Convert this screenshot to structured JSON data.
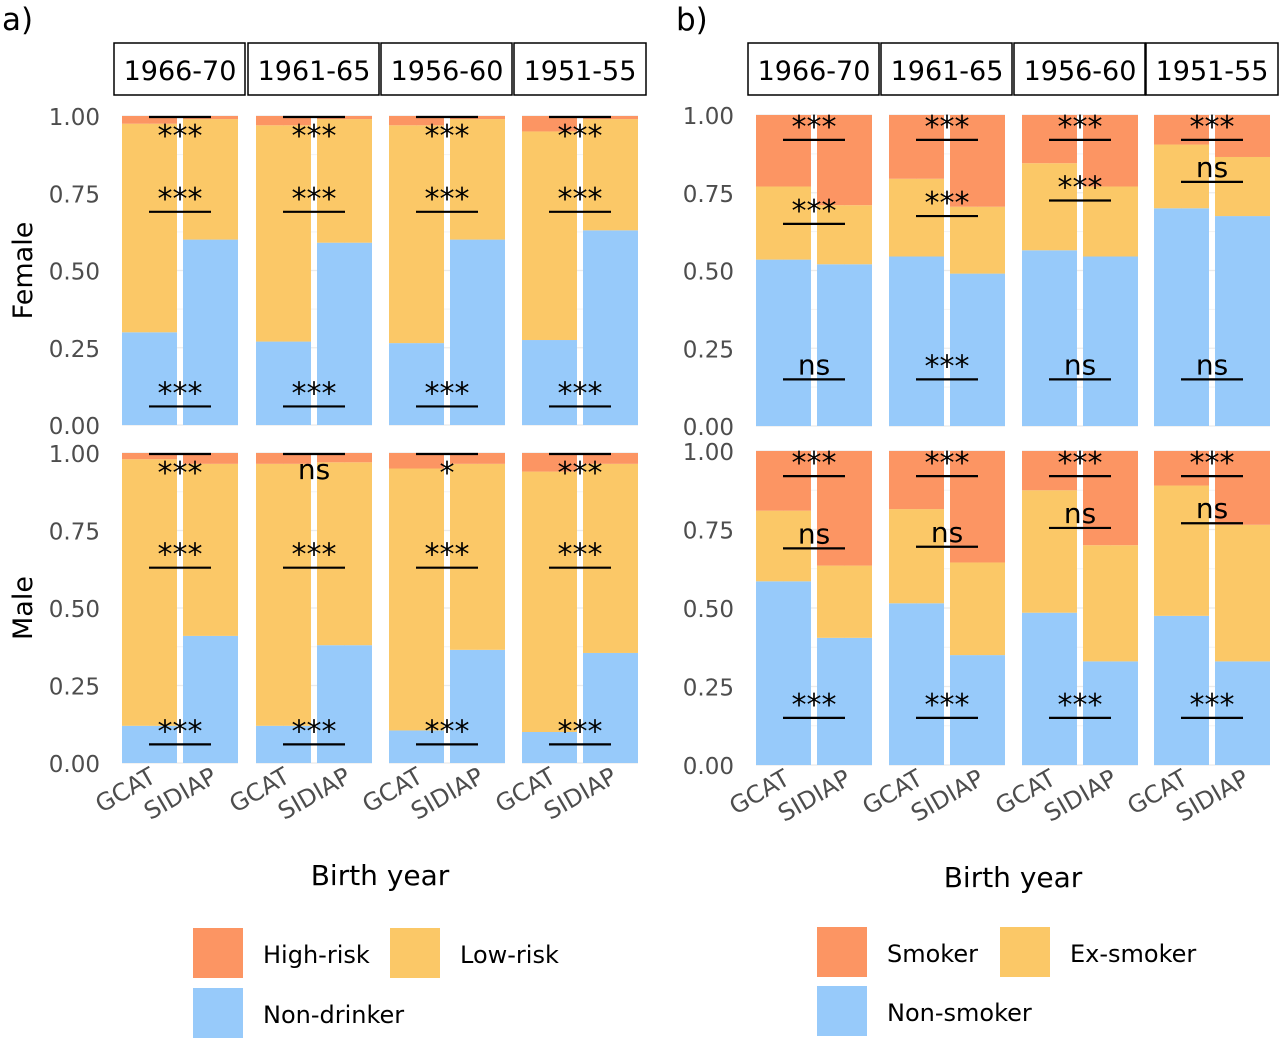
{
  "figure": {
    "panels": [
      {
        "tag": "a)"
      },
      {
        "tag": "b)"
      }
    ]
  },
  "colors": {
    "high": "#fc9563",
    "mid": "#fbc867",
    "low": "#97cafa",
    "strip_border": "#000000",
    "grid": "#ebebeb",
    "axis_text": "#4d4d4d"
  },
  "chart_data": [
    {
      "type": "bar",
      "stacked": true,
      "panel": "a)",
      "facet_columns": [
        "1966-70",
        "1961-65",
        "1956-60",
        "1951-55"
      ],
      "facet_rows": [
        "Female",
        "Male"
      ],
      "categories": [
        "GCAT",
        "SIDIAP"
      ],
      "xlabel": "Birth year",
      "ylim": [
        0,
        1
      ],
      "yticks": [
        "0.00",
        "0.25",
        "0.50",
        "0.75",
        "1.00"
      ],
      "legend": {
        "position": "bottom",
        "entries": [
          {
            "name": "High-risk",
            "color_key": "high"
          },
          {
            "name": "Low-risk",
            "color_key": "mid"
          },
          {
            "name": "Non-drinker",
            "color_key": "low"
          }
        ]
      },
      "cells": {
        "Female": [
          {
            "cohort": "1966-70",
            "GCAT": [
              0.3,
              0.675,
              0.025
            ],
            "SIDIAP": [
              0.6,
              0.39,
              0.01
            ],
            "sig": [
              "***",
              "***",
              "***"
            ]
          },
          {
            "cohort": "1961-65",
            "GCAT": [
              0.27,
              0.7,
              0.03
            ],
            "SIDIAP": [
              0.59,
              0.4,
              0.01
            ],
            "sig": [
              "***",
              "***",
              "***"
            ]
          },
          {
            "cohort": "1956-60",
            "GCAT": [
              0.265,
              0.705,
              0.03
            ],
            "SIDIAP": [
              0.6,
              0.39,
              0.01
            ],
            "sig": [
              "***",
              "***",
              "***"
            ]
          },
          {
            "cohort": "1951-55",
            "GCAT": [
              0.275,
              0.675,
              0.05
            ],
            "SIDIAP": [
              0.63,
              0.36,
              0.01
            ],
            "sig": [
              "***",
              "***",
              "***"
            ]
          }
        ],
        "Male": [
          {
            "cohort": "1966-70",
            "GCAT": [
              0.12,
              0.86,
              0.02
            ],
            "SIDIAP": [
              0.41,
              0.555,
              0.035
            ],
            "sig": [
              "***",
              "***",
              "***"
            ]
          },
          {
            "cohort": "1961-65",
            "GCAT": [
              0.12,
              0.845,
              0.035
            ],
            "SIDIAP": [
              0.38,
              0.59,
              0.03
            ],
            "sig": [
              "***",
              "***",
              "ns"
            ]
          },
          {
            "cohort": "1956-60",
            "GCAT": [
              0.105,
              0.845,
              0.05
            ],
            "SIDIAP": [
              0.365,
              0.6,
              0.035
            ],
            "sig": [
              "***",
              "***",
              "*"
            ]
          },
          {
            "cohort": "1951-55",
            "GCAT": [
              0.1,
              0.84,
              0.06
            ],
            "SIDIAP": [
              0.355,
              0.61,
              0.035
            ],
            "sig": [
              "***",
              "***",
              "***"
            ]
          }
        ]
      }
    },
    {
      "type": "bar",
      "stacked": true,
      "panel": "b)",
      "facet_columns": [
        "1966-70",
        "1961-65",
        "1956-60",
        "1951-55"
      ],
      "facet_rows": [
        "Female",
        "Male"
      ],
      "categories": [
        "GCAT",
        "SIDIAP"
      ],
      "xlabel": "Birth year",
      "ylim": [
        0,
        1
      ],
      "yticks": [
        "0.00",
        "0.25",
        "0.50",
        "0.75",
        "1.00"
      ],
      "legend": {
        "position": "bottom",
        "entries": [
          {
            "name": "Smoker",
            "color_key": "high"
          },
          {
            "name": "Ex-smoker",
            "color_key": "mid"
          },
          {
            "name": "Non-smoker",
            "color_key": "low"
          }
        ]
      },
      "cells": {
        "Female": [
          {
            "cohort": "1966-70",
            "GCAT": [
              0.535,
              0.235,
              0.23
            ],
            "SIDIAP": [
              0.52,
              0.19,
              0.29
            ],
            "sig": [
              "ns",
              "***",
              "***"
            ]
          },
          {
            "cohort": "1961-65",
            "GCAT": [
              0.545,
              0.25,
              0.205
            ],
            "SIDIAP": [
              0.49,
              0.215,
              0.295
            ],
            "sig": [
              "***",
              "***",
              "***"
            ]
          },
          {
            "cohort": "1956-60",
            "GCAT": [
              0.565,
              0.28,
              0.155
            ],
            "SIDIAP": [
              0.545,
              0.225,
              0.23
            ],
            "sig": [
              "ns",
              "***",
              "***"
            ]
          },
          {
            "cohort": "1951-55",
            "GCAT": [
              0.7,
              0.205,
              0.095
            ],
            "SIDIAP": [
              0.675,
              0.19,
              0.135
            ],
            "sig": [
              "ns",
              "ns",
              "***"
            ]
          }
        ],
        "Male": [
          {
            "cohort": "1966-70",
            "GCAT": [
              0.585,
              0.225,
              0.19
            ],
            "SIDIAP": [
              0.405,
              0.23,
              0.365
            ],
            "sig": [
              "***",
              "ns",
              "***"
            ]
          },
          {
            "cohort": "1961-65",
            "GCAT": [
              0.515,
              0.3,
              0.185
            ],
            "SIDIAP": [
              0.35,
              0.295,
              0.355
            ],
            "sig": [
              "***",
              "ns",
              "***"
            ]
          },
          {
            "cohort": "1956-60",
            "GCAT": [
              0.485,
              0.39,
              0.125
            ],
            "SIDIAP": [
              0.33,
              0.37,
              0.3
            ],
            "sig": [
              "***",
              "ns",
              "***"
            ]
          },
          {
            "cohort": "1951-55",
            "GCAT": [
              0.475,
              0.415,
              0.11
            ],
            "SIDIAP": [
              0.33,
              0.435,
              0.235
            ],
            "sig": [
              "***",
              "ns",
              "***"
            ]
          }
        ]
      }
    }
  ]
}
